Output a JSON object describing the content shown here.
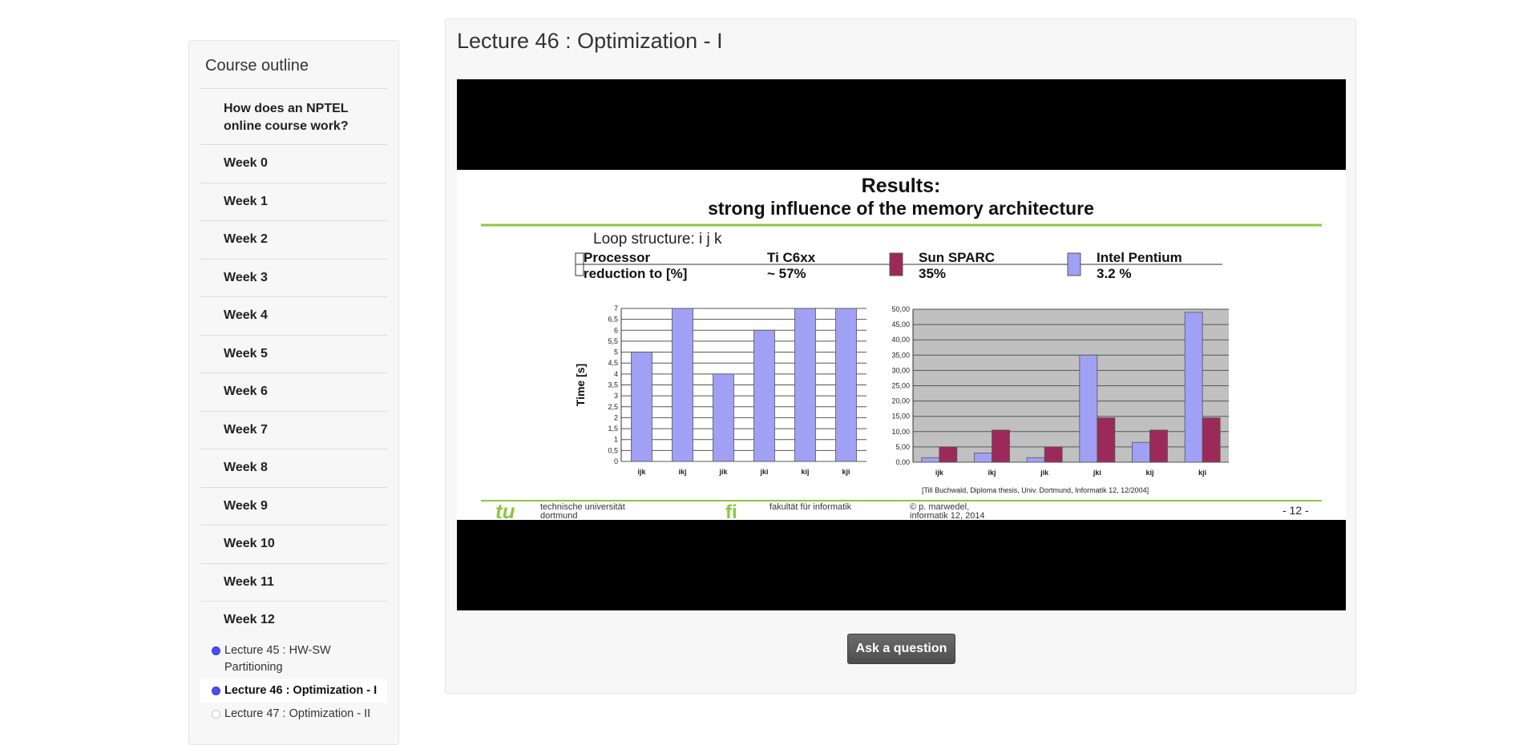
{
  "sidebar": {
    "title": "Course outline",
    "items": [
      {
        "label": "How does an NPTEL online course work?"
      },
      {
        "label": "Week 0"
      },
      {
        "label": "Week 1"
      },
      {
        "label": "Week 2"
      },
      {
        "label": "Week 3"
      },
      {
        "label": "Week 4"
      },
      {
        "label": "Week 5"
      },
      {
        "label": "Week 6"
      },
      {
        "label": "Week 7"
      },
      {
        "label": "Week 8"
      },
      {
        "label": "Week 9"
      },
      {
        "label": "Week 10"
      },
      {
        "label": "Week 11"
      },
      {
        "label": "Week 12"
      }
    ],
    "lectures": [
      {
        "label": "Lecture 45 : HW-SW Partitioning",
        "status": "visited"
      },
      {
        "label": "Lecture 46 : Optimization - I",
        "status": "current"
      },
      {
        "label": "Lecture 47 : Optimization - II",
        "status": "unvisited"
      }
    ]
  },
  "main": {
    "title": "Lecture 46 : Optimization - I",
    "ask_button": "Ask a question"
  },
  "slide": {
    "title_line1": "Results:",
    "title_line2": "strong influence of the memory architecture",
    "loop_structure": "Loop structure: i j k",
    "table": {
      "row1": [
        "Processor",
        "Ti C6xx",
        "Sun SPARC",
        "Intel Pentium"
      ],
      "row2": [
        "reduction to [%]",
        "~ 57%",
        "35%",
        "3.2 %"
      ]
    },
    "citation": "[Till Buchwald, Diploma thesis, Univ. Dortmund, Informatik 12, 12/2004]",
    "footer": {
      "tu_logo": "tu",
      "uni_line1": "technische universität",
      "uni_line2": "dortmund",
      "fi_logo": "fi",
      "faculty": "fakultät für informatik",
      "author_line1": "© p. marwedel,",
      "author_line2": "informatik 12, 2014",
      "page": "- 12 -"
    }
  },
  "colors": {
    "accent_green": "#8dc63f",
    "pentium_blue": "#a0a0f4",
    "sparc_red": "#9b2a5a",
    "active_dot": "#4b4ef2"
  },
  "chart_data": [
    {
      "type": "bar",
      "title": "",
      "xlabel": "",
      "ylabel": "Time [s]",
      "categories": [
        "ijk",
        "ikj",
        "jik",
        "jki",
        "kij",
        "kji"
      ],
      "yticks": [
        "0",
        "0,5",
        "1",
        "1,5",
        "2",
        "2,5",
        "3",
        "3,5",
        "4",
        "4,5",
        "5",
        "5,5",
        "6",
        "6,5",
        "7"
      ],
      "ylim": [
        0,
        7
      ],
      "series": [
        {
          "values": [
            5,
            7,
            4,
            6,
            7,
            7
          ]
        }
      ]
    },
    {
      "type": "bar",
      "title": "",
      "xlabel": "",
      "ylabel": "",
      "categories": [
        "ijk",
        "ikj",
        "jik",
        "jki",
        "kij",
        "kji"
      ],
      "yticks": [
        "0,00",
        "5,00",
        "10,00",
        "15,00",
        "20,00",
        "25,00",
        "30,00",
        "35,00",
        "40,00",
        "45,00",
        "50,00"
      ],
      "ylim": [
        0,
        50
      ],
      "series": [
        {
          "values": [
            1.5,
            3,
            1.5,
            35,
            6.5,
            49
          ]
        },
        {
          "values": [
            5,
            10.5,
            5,
            14.5,
            10.5,
            14.5
          ]
        }
      ]
    }
  ]
}
